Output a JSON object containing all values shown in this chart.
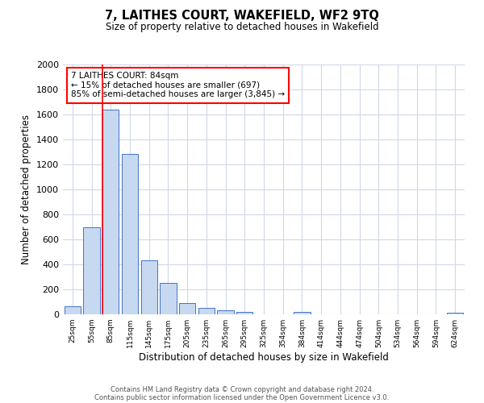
{
  "title": "7, LAITHES COURT, WAKEFIELD, WF2 9TQ",
  "subtitle": "Size of property relative to detached houses in Wakefield",
  "xlabel": "Distribution of detached houses by size in Wakefield",
  "ylabel": "Number of detached properties",
  "bar_color": "#c6d9f0",
  "bar_edge_color": "#4472c4",
  "categories": [
    "25sqm",
    "55sqm",
    "85sqm",
    "115sqm",
    "145sqm",
    "175sqm",
    "205sqm",
    "235sqm",
    "265sqm",
    "295sqm",
    "325sqm",
    "354sqm",
    "384sqm",
    "414sqm",
    "444sqm",
    "474sqm",
    "504sqm",
    "534sqm",
    "564sqm",
    "594sqm",
    "624sqm"
  ],
  "values": [
    65,
    697,
    1638,
    1285,
    435,
    252,
    88,
    52,
    35,
    22,
    0,
    0,
    18,
    0,
    0,
    0,
    0,
    0,
    0,
    0,
    12
  ],
  "ylim": [
    0,
    2000
  ],
  "yticks": [
    0,
    200,
    400,
    600,
    800,
    1000,
    1200,
    1400,
    1600,
    1800,
    2000
  ],
  "property_line_x": 2,
  "annotation_title": "7 LAITHES COURT: 84sqm",
  "annotation_line1": "← 15% of detached houses are smaller (697)",
  "annotation_line2": "85% of semi-detached houses are larger (3,845) →",
  "footer_line1": "Contains HM Land Registry data © Crown copyright and database right 2024.",
  "footer_line2": "Contains public sector information licensed under the Open Government Licence v3.0.",
  "background_color": "#ffffff",
  "grid_color": "#d0d8e8"
}
